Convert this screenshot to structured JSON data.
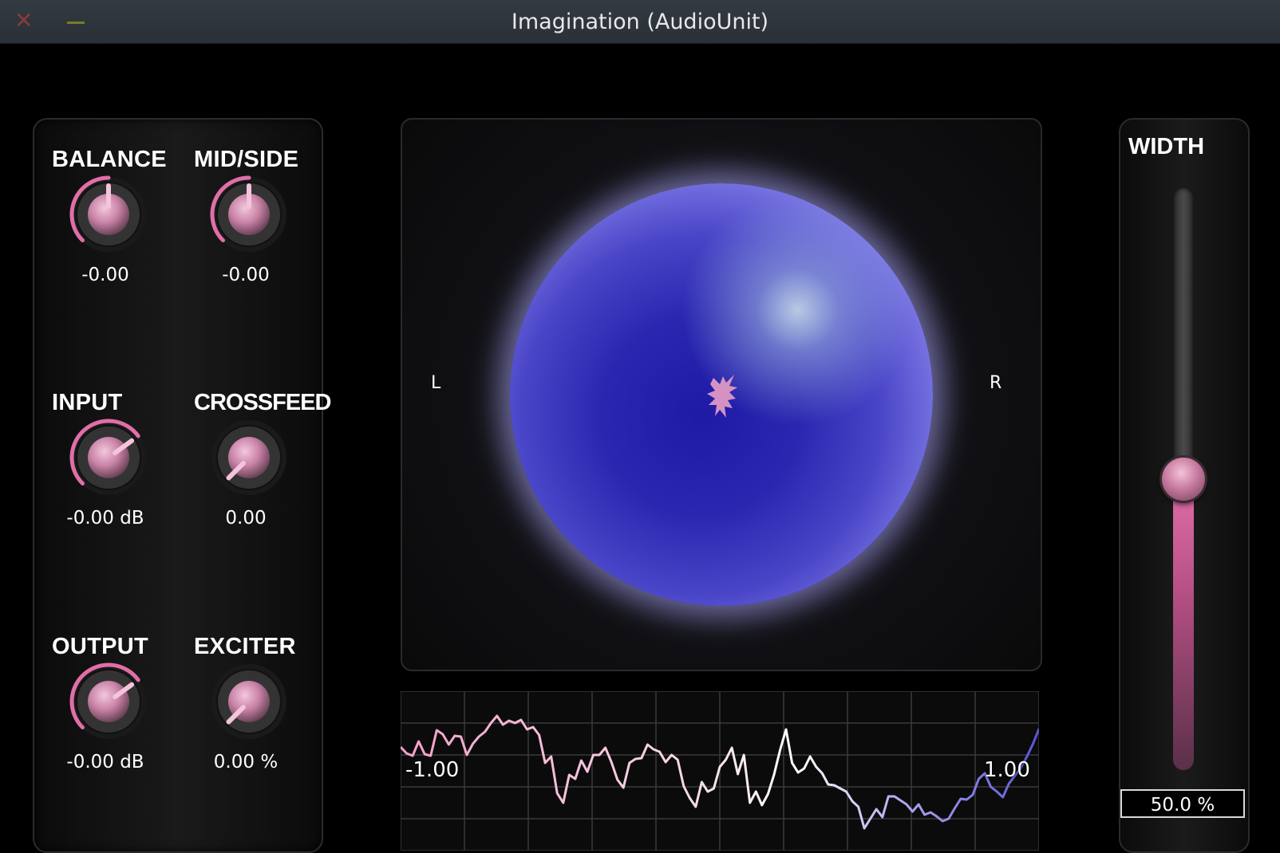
{
  "window": {
    "title": "Imagination (AudioUnit)"
  },
  "theme": {
    "accent": "#e06fa8",
    "accent_dark": "#5a3048",
    "sphere_blue": "#2a26b0",
    "sphere_light": "#b4b0ff",
    "meter_left_color": "#f2a0c8",
    "meter_mid_color": "#ffffff",
    "meter_right_color": "#5a55d8"
  },
  "knobs": [
    {
      "id": "balance",
      "label": "BALANCE",
      "value": "-0.00",
      "level": 0.5,
      "mode": "bipolar"
    },
    {
      "id": "midside",
      "label": "MID/SIDE",
      "value": "-0.00",
      "level": 0.5,
      "mode": "bipolar"
    },
    {
      "id": "input",
      "label": "INPUT",
      "value": "-0.00 dB",
      "level": 0.7,
      "mode": "unipolar"
    },
    {
      "id": "crossfeed",
      "label": "CROSSFEED",
      "value": "0.00",
      "level": 0.0,
      "mode": "none"
    },
    {
      "id": "output",
      "label": "OUTPUT",
      "value": "-0.00 dB",
      "level": 0.7,
      "mode": "unipolar"
    },
    {
      "id": "exciter",
      "label": "EXCITER",
      "value": "0.00 %",
      "level": 0.0,
      "mode": "none"
    }
  ],
  "scope": {
    "left_label": "L",
    "right_label": "R"
  },
  "meter": {
    "min_label": "-1.00",
    "max_label": "1.00",
    "trace": [
      0.3,
      0.22,
      0.19,
      0.37,
      0.21,
      0.19,
      0.51,
      0.46,
      0.33,
      0.44,
      0.43,
      0.2,
      0.34,
      0.43,
      0.49,
      0.6,
      0.69,
      0.58,
      0.63,
      0.6,
      0.64,
      0.52,
      0.55,
      0.45,
      0.1,
      0.18,
      -0.28,
      -0.4,
      -0.05,
      -0.1,
      0.13,
      -0.01,
      0.2,
      0.2,
      0.29,
      0.11,
      -0.11,
      -0.21,
      0.1,
      0.15,
      0.16,
      0.33,
      0.27,
      0.24,
      0.11,
      0.2,
      0.14,
      -0.19,
      -0.34,
      -0.45,
      -0.14,
      -0.26,
      -0.22,
      0.05,
      0.14,
      0.29,
      -0.04,
      0.2,
      -0.4,
      -0.26,
      -0.43,
      -0.29,
      -0.05,
      0.26,
      0.52,
      0.1,
      -0.02,
      0.03,
      0.18,
      0.05,
      -0.03,
      -0.17,
      -0.18,
      -0.22,
      -0.26,
      -0.38,
      -0.45,
      -0.72,
      -0.6,
      -0.48,
      -0.58,
      -0.32,
      -0.32,
      -0.37,
      -0.42,
      -0.51,
      -0.42,
      -0.55,
      -0.52,
      -0.57,
      -0.63,
      -0.6,
      -0.47,
      -0.35,
      -0.36,
      -0.3,
      -0.1,
      -0.03,
      -0.2,
      -0.26,
      -0.33,
      -0.16,
      -0.06,
      0.04,
      0.18,
      0.34,
      0.53
    ]
  },
  "width": {
    "label": "WIDTH",
    "value": "50.0 %",
    "level": 0.5
  }
}
